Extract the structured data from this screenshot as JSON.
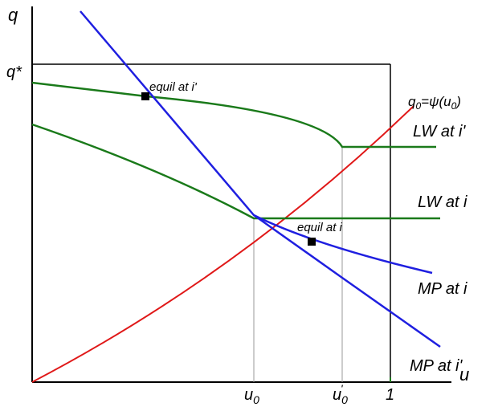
{
  "colors": {
    "axis": "#000000",
    "guide": "#9a9a9a",
    "wage_curve": "#1a7a1a",
    "mp_curve": "#1f1fe0",
    "psi_curve": "#e01818",
    "marker": "#000000"
  },
  "axes": {
    "y_label": "q",
    "x_label": "u",
    "q_star_label": "q*",
    "x_tick_u0": "u",
    "x_tick_u0_sub": "0",
    "x_tick_u0p": "u",
    "x_tick_u0p_sub": "0",
    "x_tick_u0p_prime": "'",
    "x_tick_one": "1"
  },
  "curve_labels": {
    "psi_q": "q",
    "psi_q_sub": "0",
    "psi_eq": "=",
    "psi_fn": "ψ(u",
    "psi_fn_sub": "0",
    "psi_close": ")",
    "lw_i_prime": "LW at i'",
    "lw_i": "LW at i",
    "mp_i": "MP at i",
    "mp_i_prime": "MP at i'"
  },
  "annotations": {
    "equil_i_prime": "equil at i'",
    "equil_i": "equil at i"
  }
}
